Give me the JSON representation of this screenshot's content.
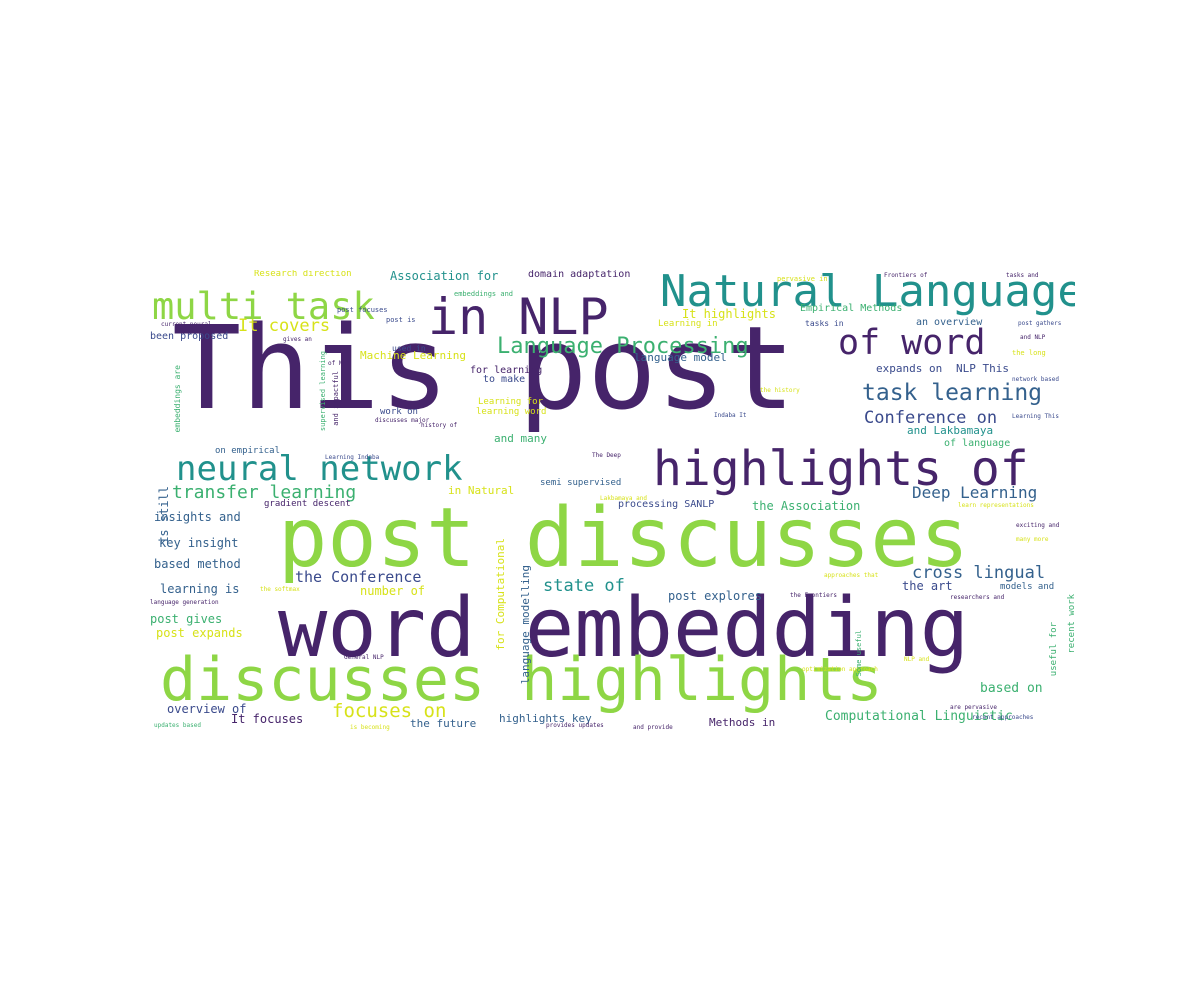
{
  "word_cloud": {
    "words": [
      {
        "text": "This post",
        "color": "#46246a"
      },
      {
        "text": "post discusses",
        "color": "#8ed645"
      },
      {
        "text": "word embedding",
        "color": "#46246a"
      },
      {
        "text": "discusses highlights",
        "color": "#8ed645"
      },
      {
        "text": "in NLP",
        "color": "#46246a"
      },
      {
        "text": "Natural Language",
        "color": "#21918c"
      },
      {
        "text": "multi task",
        "color": "#8ed645"
      },
      {
        "text": "highlights of",
        "color": "#46246a"
      },
      {
        "text": "neural network",
        "color": "#21918c"
      },
      {
        "text": "of word",
        "color": "#46246a"
      },
      {
        "text": "Language Processing",
        "color": "#3bb070"
      },
      {
        "text": "task learning",
        "color": "#34618d"
      },
      {
        "text": "transfer learning",
        "color": "#3bb070"
      },
      {
        "text": "Conference on",
        "color": "#3a4a8c"
      },
      {
        "text": "Deep Learning",
        "color": "#34618d"
      },
      {
        "text": "cross lingual",
        "color": "#34618d"
      },
      {
        "text": "focuses on",
        "color": "#d7e219"
      },
      {
        "text": "It covers",
        "color": "#d7e219"
      },
      {
        "text": "the Conference",
        "color": "#3a4a8c"
      },
      {
        "text": "state of",
        "color": "#21918c"
      },
      {
        "text": "Computational Linguistic",
        "color": "#3bb070"
      },
      {
        "text": "based on",
        "color": "#3bb070"
      },
      {
        "text": "Association for",
        "color": "#21918c"
      },
      {
        "text": "domain adaptation",
        "color": "#46246a"
      },
      {
        "text": "Research direction",
        "color": "#d7e219"
      },
      {
        "text": "It highlights",
        "color": "#d7e219"
      },
      {
        "text": "Empirical Methods",
        "color": "#3bb070"
      },
      {
        "text": "an overview",
        "color": "#34618d"
      },
      {
        "text": "been proposed",
        "color": "#3a4a8c"
      },
      {
        "text": "Machine Learning",
        "color": "#d7e219"
      },
      {
        "text": "language model",
        "color": "#34618d"
      },
      {
        "text": "expands on",
        "color": "#3a4a8c"
      },
      {
        "text": "NLP This",
        "color": "#3a4a8c"
      },
      {
        "text": "for learning",
        "color": "#46246a"
      },
      {
        "text": "to make",
        "color": "#3a4a8c"
      },
      {
        "text": "Learning for",
        "color": "#d7e219"
      },
      {
        "text": "learning word",
        "color": "#d7e219"
      },
      {
        "text": "work on",
        "color": "#3a4a8c"
      },
      {
        "text": "and Lakbamaya",
        "color": "#21918c"
      },
      {
        "text": "of language",
        "color": "#3bb070"
      },
      {
        "text": "and many",
        "color": "#3bb070"
      },
      {
        "text": "on empirical",
        "color": "#34618d"
      },
      {
        "text": "in Natural",
        "color": "#d7e219"
      },
      {
        "text": "semi supervised",
        "color": "#34618d"
      },
      {
        "text": "gradient descent",
        "color": "#46246a"
      },
      {
        "text": "insights and",
        "color": "#34618d"
      },
      {
        "text": "processing SANLP",
        "color": "#3a4a8c"
      },
      {
        "text": "the Association",
        "color": "#3bb070"
      },
      {
        "text": "key insight",
        "color": "#34618d"
      },
      {
        "text": "based method",
        "color": "#34618d"
      },
      {
        "text": "learning is",
        "color": "#34618d"
      },
      {
        "text": "number of",
        "color": "#d7e219"
      },
      {
        "text": "post explores",
        "color": "#34618d"
      },
      {
        "text": "the art",
        "color": "#3a4a8c"
      },
      {
        "text": "models and",
        "color": "#34618d"
      },
      {
        "text": "post gives",
        "color": "#3bb070"
      },
      {
        "text": "post expands",
        "color": "#d7e219"
      },
      {
        "text": "overview of",
        "color": "#3a4a8c"
      },
      {
        "text": "It focuses",
        "color": "#46246a"
      },
      {
        "text": "the future",
        "color": "#34618d"
      },
      {
        "text": "highlights key",
        "color": "#34618d"
      },
      {
        "text": "Methods in",
        "color": "#46246a"
      },
      {
        "text": "is still",
        "color": "#34618d"
      },
      {
        "text": "for Computational",
        "color": "#d7e219"
      },
      {
        "text": "language modelling",
        "color": "#34618d"
      },
      {
        "text": "recent work",
        "color": "#3bb070"
      },
      {
        "text": "useful for",
        "color": "#3bb070"
      },
      {
        "text": "embeddings and",
        "color": "#3bb070"
      },
      {
        "text": "post focuses",
        "color": "#3a4a8c"
      },
      {
        "text": "post is",
        "color": "#3a4a8c"
      },
      {
        "text": "used in",
        "color": "#3a4a8c"
      },
      {
        "text": "tasks in",
        "color": "#3a4a8c"
      },
      {
        "text": "Learning in",
        "color": "#d7e219"
      },
      {
        "text": "current neural",
        "color": "#46246a"
      },
      {
        "text": "post gathers",
        "color": "#3a4a8c"
      },
      {
        "text": "and NLP",
        "color": "#46246a"
      },
      {
        "text": "the long",
        "color": "#d7e219"
      },
      {
        "text": "network based",
        "color": "#3a4a8c"
      },
      {
        "text": "Learning This",
        "color": "#3a4a8c"
      },
      {
        "text": "the history",
        "color": "#d7e219"
      },
      {
        "text": "Indaba It",
        "color": "#3a4a8c"
      },
      {
        "text": "discusses major",
        "color": "#46246a"
      },
      {
        "text": "The Deep",
        "color": "#46246a"
      },
      {
        "text": "history of",
        "color": "#46246a"
      },
      {
        "text": "Learning Indaba",
        "color": "#3a4a8c"
      },
      {
        "text": "of NLP",
        "color": "#46246a"
      },
      {
        "text": "pervasive in",
        "color": "#d7e219"
      },
      {
        "text": "Frontiers of",
        "color": "#46246a"
      },
      {
        "text": "tasks and",
        "color": "#46246a"
      },
      {
        "text": "exciting and",
        "color": "#46246a"
      },
      {
        "text": "many more",
        "color": "#d7e219"
      },
      {
        "text": "learn representations",
        "color": "#d7e219"
      },
      {
        "text": "approaches that",
        "color": "#d7e219"
      },
      {
        "text": "the softmax",
        "color": "#d7e219"
      },
      {
        "text": "language generation",
        "color": "#46246a"
      },
      {
        "text": "researchers and",
        "color": "#46246a"
      },
      {
        "text": "the Frontiers",
        "color": "#46246a"
      },
      {
        "text": "updates based",
        "color": "#3bb070"
      },
      {
        "text": "is becoming",
        "color": "#d7e219"
      },
      {
        "text": "and provide",
        "color": "#46246a"
      },
      {
        "text": "recent approaches",
        "color": "#3a4a8c"
      },
      {
        "text": "provides updates",
        "color": "#46246a"
      },
      {
        "text": "optimization approach",
        "color": "#d7e219"
      },
      {
        "text": "General NLP",
        "color": "#46246a"
      },
      {
        "text": "NLP and",
        "color": "#d7e219"
      },
      {
        "text": "are pervasive",
        "color": "#46246a"
      },
      {
        "text": "embeddings are",
        "color": "#3bb070"
      },
      {
        "text": "supervised learning",
        "color": "#3bb070"
      },
      {
        "text": "and impactful",
        "color": "#46246a"
      },
      {
        "text": "Some useful",
        "color": "#3bb070"
      },
      {
        "text": "gives an",
        "color": "#46246a"
      },
      {
        "text": "Lakbamaya and",
        "color": "#d7e219"
      }
    ]
  }
}
